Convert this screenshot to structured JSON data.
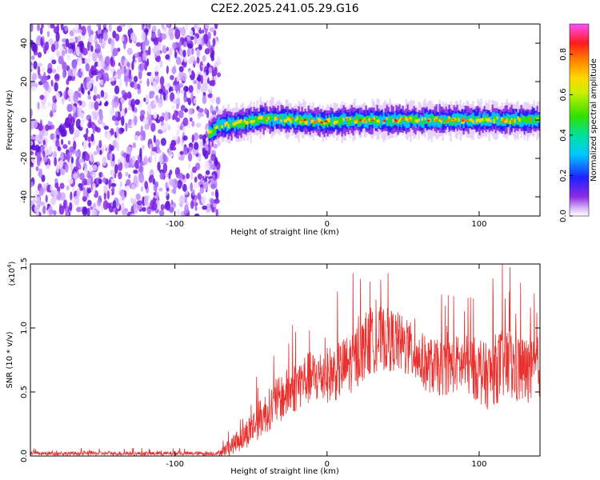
{
  "title": "C2E2.2025.241.05.29.G16",
  "chart_data": [
    {
      "type": "heatmap",
      "xlabel": "Height of straight line (km)",
      "ylabel": "Frequency (Hz)",
      "xlim": [
        -195,
        140
      ],
      "ylim": [
        -50,
        50
      ],
      "xticks": [
        -100,
        0,
        100
      ],
      "yticks": [
        -40,
        -20,
        0,
        20,
        40
      ],
      "noise_region_x": [
        -195,
        -71
      ],
      "signal": {
        "x_start": -78,
        "x_end": 140,
        "center_freq": [
          [
            -78,
            -7
          ],
          [
            -72,
            -3
          ],
          [
            -60,
            -2
          ],
          [
            -40,
            1
          ],
          [
            -20,
            0
          ],
          [
            0,
            -1
          ],
          [
            20,
            0
          ],
          [
            40,
            0
          ],
          [
            60,
            0
          ],
          [
            80,
            0
          ],
          [
            100,
            0
          ],
          [
            120,
            0
          ],
          [
            140,
            0
          ]
        ],
        "band_halfwidth_hz": 4
      },
      "colorbar": {
        "label": "Normalized spectral amplitude",
        "ticks": [
          0.0,
          0.2,
          0.4,
          0.6,
          0.8
        ],
        "range": [
          0,
          0.95
        ]
      },
      "grid": false
    },
    {
      "type": "line",
      "xlabel": "Height of straight line (km)",
      "ylabel": "SNR (10 * v/v)",
      "scale_label": "(x10",
      "scale_exp": "4",
      "scale_close": ")",
      "xlim": [
        -195,
        140
      ],
      "ylim": [
        0,
        1.5
      ],
      "xticks": [
        -100,
        0,
        100
      ],
      "yticks": [
        "0.0",
        "0.5",
        "1.0",
        "1.5"
      ],
      "series": [
        {
          "color": "#e8312e",
          "envelope": {
            "x": [
              -195,
              -100,
              -72,
              -65,
              -55,
              -45,
              -35,
              -25,
              -15,
              -5,
              5,
              15,
              25,
              35,
              45,
              55,
              65,
              75,
              85,
              95,
              105,
              115,
              125,
              135,
              140
            ],
            "y": [
              0.02,
              0.02,
              0.02,
              0.06,
              0.15,
              0.28,
              0.4,
              0.5,
              0.6,
              0.62,
              0.65,
              0.72,
              0.85,
              0.92,
              0.9,
              0.82,
              0.72,
              0.68,
              0.72,
              0.7,
              0.62,
              0.72,
              0.68,
              0.65,
              0.7
            ]
          },
          "noise_amplitude": {
            "x": [
              -195,
              -72,
              -65,
              -45,
              -25,
              0,
              20,
              40,
              60,
              80,
              100,
              120,
              140
            ],
            "y": [
              0.015,
              0.015,
              0.06,
              0.15,
              0.2,
              0.22,
              0.25,
              0.25,
              0.22,
              0.22,
              0.25,
              0.3,
              0.25
            ]
          }
        }
      ],
      "grid": false
    }
  ]
}
